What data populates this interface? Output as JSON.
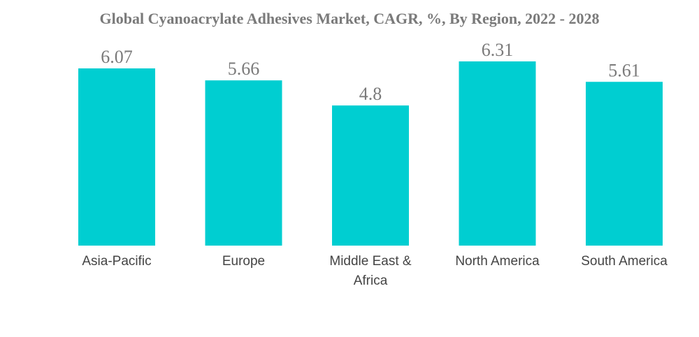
{
  "chart_data": {
    "type": "bar",
    "title": "Global Cyanoacrylate Adhesives Market, CAGR, %, By Region, 2022 - 2028",
    "xlabel": "",
    "ylabel": "",
    "categories": [
      [
        "Asia-Pacific"
      ],
      [
        "Europe"
      ],
      [
        "Middle East &",
        "Africa"
      ],
      [
        "North America"
      ],
      [
        "South America"
      ]
    ],
    "values": [
      6.07,
      5.66,
      4.8,
      6.31,
      5.61
    ],
    "value_labels": [
      "6.07",
      "5.66",
      "4.8",
      "6.31",
      "5.61"
    ],
    "ylim": [
      0,
      6.31
    ],
    "grid": false,
    "legend": "none",
    "bar_color": "#00ced1"
  }
}
